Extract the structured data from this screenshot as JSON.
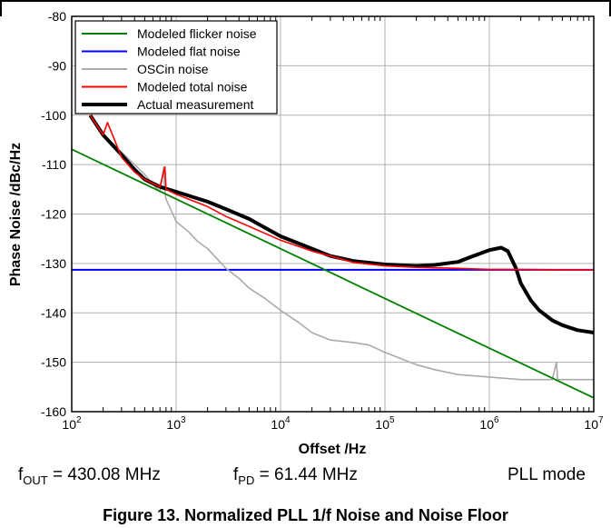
{
  "chart_data": {
    "type": "line",
    "xlabel": "Offset /Hz",
    "ylabel": "Phase Noise /dBc/Hz",
    "xscale": "log",
    "xlim": [
      100,
      10000000
    ],
    "ylim": [
      -160,
      -80
    ],
    "x_ticks": [
      {
        "value": 100,
        "base": "10",
        "exp": "2"
      },
      {
        "value": 1000,
        "base": "10",
        "exp": "3"
      },
      {
        "value": 10000,
        "base": "10",
        "exp": "4"
      },
      {
        "value": 100000,
        "base": "10",
        "exp": "5"
      },
      {
        "value": 1000000,
        "base": "10",
        "exp": "6"
      },
      {
        "value": 10000000,
        "base": "10",
        "exp": "7"
      }
    ],
    "y_ticks": [
      "-80",
      "-90",
      "-100",
      "-110",
      "-120",
      "-130",
      "-140",
      "-150",
      "-160"
    ],
    "y_tick_values": [
      -80,
      -90,
      -100,
      -110,
      -120,
      -130,
      -140,
      -150,
      -160
    ],
    "grid": true,
    "legend_position": "top-left",
    "series": [
      {
        "name": "Modeled flicker noise",
        "color": "#008000",
        "x": [
          100,
          10000000
        ],
        "y": [
          -106.9,
          -157.2
        ]
      },
      {
        "name": "Modeled flat noise",
        "color": "#0000ff",
        "x": [
          100,
          10000000
        ],
        "y": [
          -131.3,
          -131.3
        ]
      },
      {
        "name": "OSCin noise",
        "color": "#aaaaaa",
        "x": [
          150,
          200,
          300,
          400,
          500,
          600,
          700,
          760,
          780,
          800,
          1000,
          1300,
          1600,
          2000,
          3000,
          4000,
          5000,
          7000,
          10000,
          15000,
          20000,
          30000,
          50000,
          70000,
          100000,
          200000,
          300000,
          500000,
          1000000,
          2000000,
          4000000,
          4400000,
          4500000,
          4600000,
          5000000,
          10000000
        ],
        "y": [
          -100,
          -104,
          -107.5,
          -110,
          -112,
          -114,
          -115.5,
          -110.5,
          -115.5,
          -117,
          -121.5,
          -123.5,
          -125.5,
          -127,
          -131,
          -133,
          -135,
          -137,
          -139.5,
          -142,
          -144,
          -145.5,
          -146,
          -146.5,
          -148,
          -150.5,
          -151.5,
          -152.5,
          -153,
          -153.5,
          -153.5,
          -150,
          -153.5,
          -153.5,
          -153.5,
          -153.5
        ]
      },
      {
        "name": "Modeled total noise",
        "color": "#ff0000",
        "x": [
          150,
          200,
          220,
          300,
          400,
          500,
          700,
          780,
          800,
          1000,
          2000,
          3000,
          5000,
          10000,
          20000,
          30000,
          50000,
          100000,
          200000,
          500000,
          1000000,
          2000000,
          5000000,
          10000000
        ],
        "y": [
          -100,
          -104,
          -101.5,
          -108.5,
          -111.5,
          -113,
          -114.5,
          -110.5,
          -115,
          -116,
          -118.5,
          -120.5,
          -122.5,
          -125.3,
          -127.5,
          -128.5,
          -129.8,
          -130.5,
          -130.8,
          -131,
          -131.2,
          -131.2,
          -131.3,
          -131.3
        ]
      },
      {
        "name": "Actual measurement",
        "color": "#000000",
        "x": [
          150,
          200,
          300,
          400,
          500,
          700,
          1000,
          2000,
          3000,
          5000,
          10000,
          20000,
          30000,
          50000,
          100000,
          200000,
          300000,
          500000,
          700000,
          1000000,
          1300000,
          1500000,
          1800000,
          2000000,
          2500000,
          3000000,
          4000000,
          5000000,
          7000000,
          10000000
        ],
        "y": [
          -100,
          -104,
          -108,
          -111,
          -113,
          -114.5,
          -115.5,
          -117.5,
          -119,
          -121,
          -124.5,
          -127,
          -128.5,
          -129.5,
          -130.2,
          -130.5,
          -130.3,
          -129.7,
          -128.5,
          -127.3,
          -126.8,
          -127.5,
          -131,
          -134,
          -137.5,
          -139.5,
          -141.5,
          -142.5,
          -143.5,
          -144
        ]
      }
    ]
  },
  "notes": {
    "fout_label": "f",
    "fout_sub": "OUT",
    "fout_value": " = 430.08 MHz",
    "fpd_label": "f",
    "fpd_sub": "PD",
    "fpd_value": " = 61.44 MHz",
    "mode": "PLL mode"
  },
  "caption": "Figure 13. Normalized PLL 1/f Noise and Noise Floor"
}
